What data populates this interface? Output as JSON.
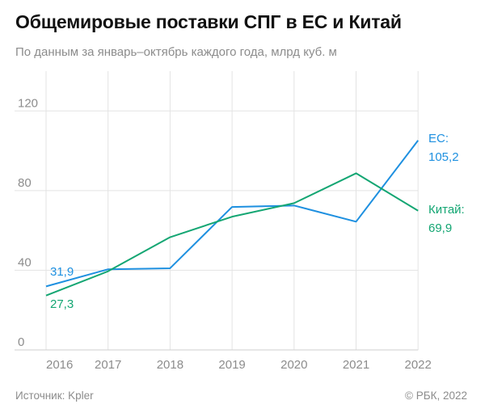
{
  "title": "Общемировые поставки СПГ в ЕС и Китай",
  "subtitle": "По данным за январь–октябрь каждого года, млрд куб. м",
  "source": "Источник: Kpler",
  "copyright": "© РБК, 2022",
  "colors": {
    "eu": "#1e90e0",
    "china": "#14a673",
    "grid": "#e3e3e3",
    "text": "#8c8c8c"
  },
  "chart_data": {
    "type": "line",
    "x": [
      "2016",
      "2017",
      "2018",
      "2019",
      "2020",
      "2021",
      "2022"
    ],
    "y_ticks": [
      "0",
      "40",
      "80",
      "120"
    ],
    "ylim": [
      0,
      140
    ],
    "grid": "horizontal-and-vertical",
    "series": [
      {
        "name": "ЕС",
        "values": [
          31.9,
          40.5,
          41.0,
          71.8,
          72.5,
          64.4,
          105.2
        ]
      },
      {
        "name": "Китай",
        "values": [
          27.3,
          39.5,
          56.6,
          66.9,
          73.7,
          88.7,
          69.9
        ]
      }
    ],
    "labels": {
      "eu_start": "31,9",
      "china_start": "27,3",
      "eu_end_name": "ЕС:",
      "eu_end_value": "105,2",
      "china_end_name": "Китай:",
      "china_end_value": "69,9"
    }
  }
}
